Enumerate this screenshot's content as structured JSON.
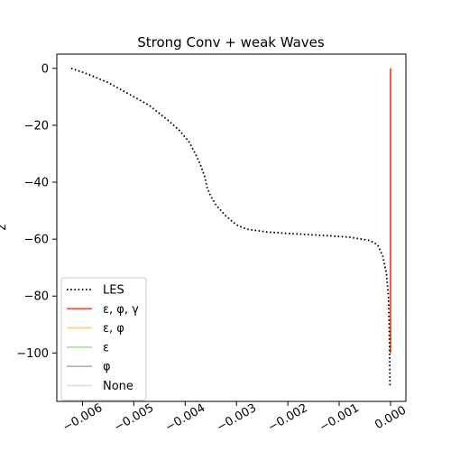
{
  "chart_data": {
    "type": "line",
    "title": "Strong Conv + weak Waves",
    "xlabel": "",
    "ylabel": "z",
    "xlim": [
      -0.0065,
      0.0003
    ],
    "ylim": [
      -117,
      5
    ],
    "grid": false,
    "legend_placement": "lower-left",
    "x_ticks": [
      {
        "value": -0.006,
        "label": "−0.006"
      },
      {
        "value": -0.005,
        "label": "−0.005"
      },
      {
        "value": -0.004,
        "label": "−0.004"
      },
      {
        "value": -0.003,
        "label": "−0.003"
      },
      {
        "value": -0.002,
        "label": "−0.002"
      },
      {
        "value": -0.001,
        "label": "−0.001"
      },
      {
        "value": 0.0,
        "label": "0.000"
      }
    ],
    "y_ticks": [
      {
        "value": 0,
        "label": "0"
      },
      {
        "value": -20,
        "label": "−20"
      },
      {
        "value": -40,
        "label": "−40"
      },
      {
        "value": -60,
        "label": "−60"
      },
      {
        "value": -80,
        "label": "−80"
      },
      {
        "value": -100,
        "label": "−100"
      }
    ],
    "series": [
      {
        "name": "LES",
        "color": "#000000",
        "style": "dotted",
        "x": [
          -0.00622,
          -0.0059,
          -0.0055,
          -0.0051,
          -0.0047,
          -0.00435,
          -0.0041,
          -0.00392,
          -0.0038,
          -0.0037,
          -0.00362,
          -0.00357,
          -0.0035,
          -0.0034,
          -0.0032,
          -0.003,
          -0.0028,
          -0.0024,
          -0.002,
          -0.0014,
          -0.0008,
          -0.0004,
          -0.00025,
          -0.00015,
          -8e-05,
          -4e-05,
          -2e-05,
          -1e-05
        ],
        "y": [
          0,
          -2,
          -5,
          -9,
          -13,
          -18,
          -22,
          -26,
          -30,
          -34,
          -38,
          -42,
          -45,
          -48,
          -52,
          -55,
          -56.5,
          -57.5,
          -58,
          -58.6,
          -59.3,
          -60.5,
          -62,
          -66,
          -72,
          -80,
          -95,
          -112
        ]
      },
      {
        "name": "ε, φ, γ",
        "color": "#ff3f2f",
        "style": "solid",
        "x": [
          0.0,
          0.0
        ],
        "y": [
          0,
          -100
        ]
      },
      {
        "name": "ε, φ",
        "color": "#ffcc66",
        "style": "solid",
        "x": [
          0.0,
          0.0
        ],
        "y": [
          0,
          -100
        ]
      },
      {
        "name": "ε",
        "color": "#b2d8a6",
        "style": "solid",
        "x": [
          0.0,
          0.0
        ],
        "y": [
          0,
          -100
        ]
      },
      {
        "name": "φ",
        "color": "#b0a8d8",
        "style": "solid",
        "x": [
          0.0,
          0.0
        ],
        "y": [
          0,
          -100
        ]
      },
      {
        "name": "None",
        "color": "#dddddd",
        "style": "solid",
        "x": [
          0.0,
          0.0
        ],
        "y": [
          0,
          -100
        ]
      }
    ]
  }
}
